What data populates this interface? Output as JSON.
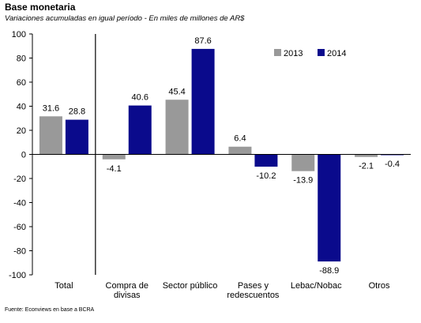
{
  "header": {
    "title": "Base monetaria",
    "subtitle": "Variaciones acumuladas en igual período - En miles de millones de AR$"
  },
  "footer": {
    "source": "Fuente: Econviews en base a BCRA"
  },
  "colors": {
    "s2013": "#999999",
    "s2014": "#0a0a8c"
  },
  "chart_data": {
    "type": "bar",
    "title": "Base monetaria",
    "subtitle": "Variaciones acumuladas en igual período - En miles de millones de AR$",
    "xlabel": "",
    "ylabel": "",
    "ylim": [
      -100,
      100
    ],
    "yticks": [
      100,
      80,
      60,
      40,
      20,
      0,
      -20,
      -40,
      -60,
      -80,
      -100
    ],
    "categories": [
      [
        "Total"
      ],
      [
        "Compra de",
        "divisas"
      ],
      [
        "Sector público"
      ],
      [
        "Pases y",
        "redescuentos"
      ],
      [
        "Lebac/Nobac"
      ],
      [
        "Otros"
      ]
    ],
    "series": [
      {
        "name": "2013",
        "color": "#999999",
        "values": [
          31.6,
          -4.1,
          45.4,
          6.4,
          -13.9,
          -2.1
        ]
      },
      {
        "name": "2014",
        "color": "#0a0a8c",
        "values": [
          28.8,
          40.6,
          87.6,
          -10.2,
          -88.9,
          -0.4
        ]
      }
    ],
    "data_labels": [
      [
        "31.6",
        "-4.1",
        "45.4",
        "6.4",
        "-13.9",
        "-2.1"
      ],
      [
        "28.8",
        "40.6",
        "87.6",
        "-10.2",
        "-88.9",
        "-0.4"
      ]
    ],
    "separator_after_category": 0,
    "grid": false,
    "legend_position": "top-right"
  }
}
